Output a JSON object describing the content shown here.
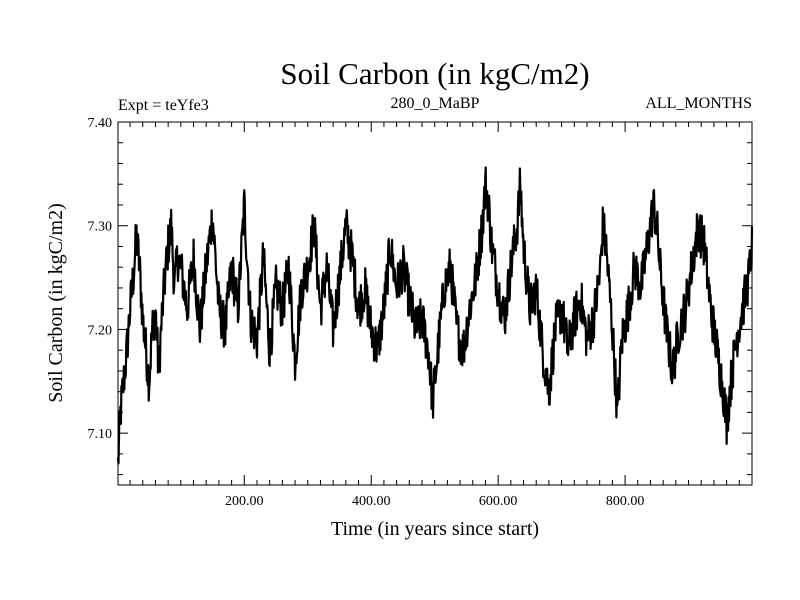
{
  "chart_data": {
    "type": "line",
    "title": "Soil Carbon (in kgC/m2)",
    "subtitle_left": "Expt = teYfe3",
    "subtitle_center": "280_0_MaBP",
    "subtitle_right": "ALL_MONTHS",
    "xlabel": "Time (in years since start)",
    "ylabel": "Soil Carbon (in kgC/m2)",
    "xlim": [
      1,
      1000
    ],
    "ylim": [
      7.05,
      7.4
    ],
    "x_ticks": [
      200,
      400,
      600,
      800
    ],
    "x_tick_labels": [
      "200.00",
      "400.00",
      "600.00",
      "800.00"
    ],
    "y_ticks": [
      7.1,
      7.2,
      7.3,
      7.4
    ],
    "y_tick_labels": [
      "7.10",
      "7.20",
      "7.30",
      "7.40"
    ],
    "grid": false,
    "line_color": "#000000",
    "series": [
      {
        "name": "Soil Carbon",
        "x": [
          1,
          5,
          10,
          15,
          20,
          25,
          30,
          35,
          40,
          45,
          50,
          55,
          60,
          65,
          70,
          75,
          80,
          85,
          90,
          95,
          100,
          110,
          120,
          130,
          140,
          150,
          160,
          170,
          180,
          190,
          200,
          210,
          220,
          230,
          240,
          250,
          260,
          270,
          280,
          290,
          300,
          310,
          320,
          330,
          340,
          350,
          360,
          370,
          380,
          390,
          400,
          410,
          420,
          430,
          440,
          450,
          460,
          470,
          480,
          490,
          497,
          505,
          515,
          525,
          535,
          545,
          555,
          565,
          575,
          580,
          585,
          590,
          600,
          610,
          620,
          630,
          635,
          640,
          650,
          660,
          670,
          680,
          690,
          700,
          710,
          720,
          730,
          740,
          750,
          760,
          765,
          770,
          780,
          788,
          795,
          805,
          815,
          825,
          835,
          845,
          850,
          855,
          865,
          875,
          885,
          895,
          905,
          915,
          925,
          935,
          945,
          955,
          960,
          965,
          975,
          985,
          995,
          1000
        ],
        "y": [
          7.07,
          7.12,
          7.15,
          7.18,
          7.22,
          7.25,
          7.29,
          7.26,
          7.21,
          7.18,
          7.15,
          7.2,
          7.22,
          7.16,
          7.21,
          7.25,
          7.28,
          7.3,
          7.24,
          7.27,
          7.26,
          7.22,
          7.27,
          7.2,
          7.26,
          7.31,
          7.22,
          7.2,
          7.26,
          7.22,
          7.32,
          7.21,
          7.19,
          7.27,
          7.18,
          7.24,
          7.22,
          7.26,
          7.17,
          7.24,
          7.26,
          7.3,
          7.22,
          7.26,
          7.2,
          7.25,
          7.3,
          7.27,
          7.22,
          7.24,
          7.2,
          7.18,
          7.22,
          7.28,
          7.24,
          7.26,
          7.23,
          7.2,
          7.21,
          7.18,
          7.13,
          7.18,
          7.24,
          7.26,
          7.2,
          7.18,
          7.22,
          7.25,
          7.3,
          7.34,
          7.32,
          7.28,
          7.24,
          7.21,
          7.26,
          7.3,
          7.34,
          7.28,
          7.22,
          7.24,
          7.18,
          7.14,
          7.2,
          7.22,
          7.18,
          7.21,
          7.23,
          7.19,
          7.21,
          7.25,
          7.3,
          7.28,
          7.2,
          7.12,
          7.19,
          7.22,
          7.26,
          7.24,
          7.28,
          7.32,
          7.3,
          7.26,
          7.2,
          7.16,
          7.2,
          7.22,
          7.26,
          7.3,
          7.28,
          7.22,
          7.18,
          7.14,
          7.11,
          7.14,
          7.19,
          7.22,
          7.25,
          7.28
        ]
      }
    ]
  }
}
